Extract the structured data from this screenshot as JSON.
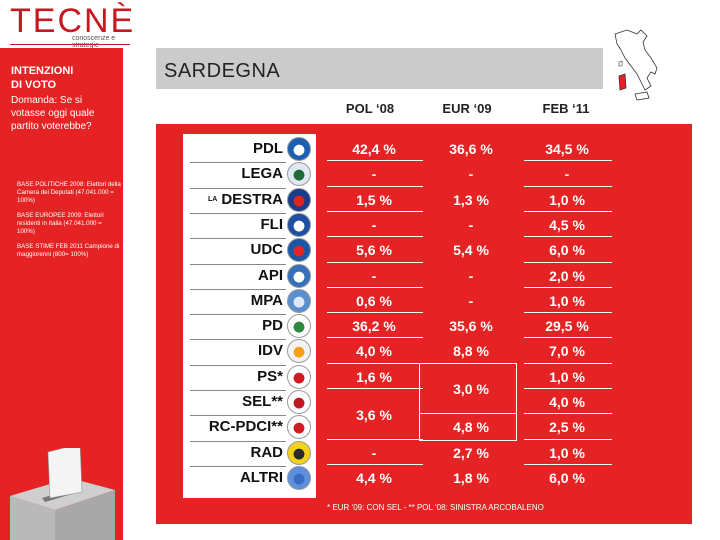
{
  "logo": {
    "name": "TECNÈ",
    "tagline": "conoscenze e strategie"
  },
  "sidebar": {
    "title_line1": "INTENZIONI",
    "title_line2": "DI VOTO",
    "question": "Domanda: Se si votasse oggi quale partito voterebbe?",
    "notes": [
      "BASE POLITICHE 2008: Elettori della Camera dei Deputati (47.041.000 = 100%)",
      "BASE EUROPEE 2009: Elettori residenti in Italia (47.041.000 = 100%)",
      "BASE STIME FEB 2011 Campione di maggiorenni (800= 100%)"
    ]
  },
  "header": {
    "region": "SARDEGNA"
  },
  "colors": {
    "accent_red": "#e52324",
    "header_gray": "#cbcbcb"
  },
  "chart_data": {
    "type": "table",
    "columns": [
      "POL ‘08",
      "EUR ‘09",
      "FEB ‘11"
    ],
    "rows": [
      {
        "party": "PDL",
        "prefix": "",
        "logo": "pdl-logo",
        "values": [
          "42,4 %",
          "36,6 %",
          "34,5 %"
        ]
      },
      {
        "party": "LEGA",
        "prefix": "",
        "logo": "lega-logo",
        "values": [
          "-",
          "-",
          "-"
        ]
      },
      {
        "party": "DESTRA",
        "prefix": "LA",
        "logo": "destra-logo",
        "values": [
          "1,5 %",
          "1,3 %",
          "1,0 %"
        ]
      },
      {
        "party": "FLI",
        "prefix": "",
        "logo": "fli-logo",
        "values": [
          "-",
          "-",
          "4,5 %"
        ]
      },
      {
        "party": "UDC",
        "prefix": "",
        "logo": "udc-logo",
        "values": [
          "5,6 %",
          "5,4 %",
          "6,0 %"
        ]
      },
      {
        "party": "API",
        "prefix": "",
        "logo": "api-logo",
        "values": [
          "-",
          "-",
          "2,0 %"
        ]
      },
      {
        "party": "MPA",
        "prefix": "",
        "logo": "mpa-logo",
        "values": [
          "0,6 %",
          "-",
          "1,0 %"
        ]
      },
      {
        "party": "PD",
        "prefix": "",
        "logo": "pd-logo",
        "values": [
          "36,2 %",
          "35,6 %",
          "29,5 %"
        ]
      },
      {
        "party": "IDV",
        "prefix": "",
        "logo": "idv-logo",
        "values": [
          "4,0 %",
          "8,8 %",
          "7,0 %"
        ]
      },
      {
        "party": "PS*",
        "prefix": "",
        "logo": "ps-logo",
        "values": [
          "1,6 %",
          "",
          "1,0 %"
        ]
      },
      {
        "party": "SEL**",
        "prefix": "",
        "logo": "sel-logo",
        "values": [
          "",
          "",
          "4,0 %"
        ]
      },
      {
        "party": "RC-PDCI**",
        "prefix": "",
        "logo": "rc-pdci-logo",
        "values": [
          "",
          "4,8 %",
          "2,5 %"
        ]
      },
      {
        "party": "RAD",
        "prefix": "",
        "logo": "rad-logo",
        "values": [
          "-",
          "2,7 %",
          "1,0 %"
        ]
      },
      {
        "party": "ALTRI",
        "prefix": "",
        "logo": "altri-logo",
        "values": [
          "4,4 %",
          "1,8 %",
          "6,0 %"
        ]
      }
    ],
    "merged_cells": [
      {
        "column": "EUR ‘09",
        "rows": [
          "PS*",
          "SEL**"
        ],
        "value": "3,0 %"
      },
      {
        "column": "POL ‘08",
        "rows": [
          "SEL**",
          "RC-PDCI**"
        ],
        "value": "3,6 %"
      }
    ],
    "footnote": "* EUR ‘09: CON SEL - ** POL ‘08: SINISTRA ARCOBALENO"
  }
}
